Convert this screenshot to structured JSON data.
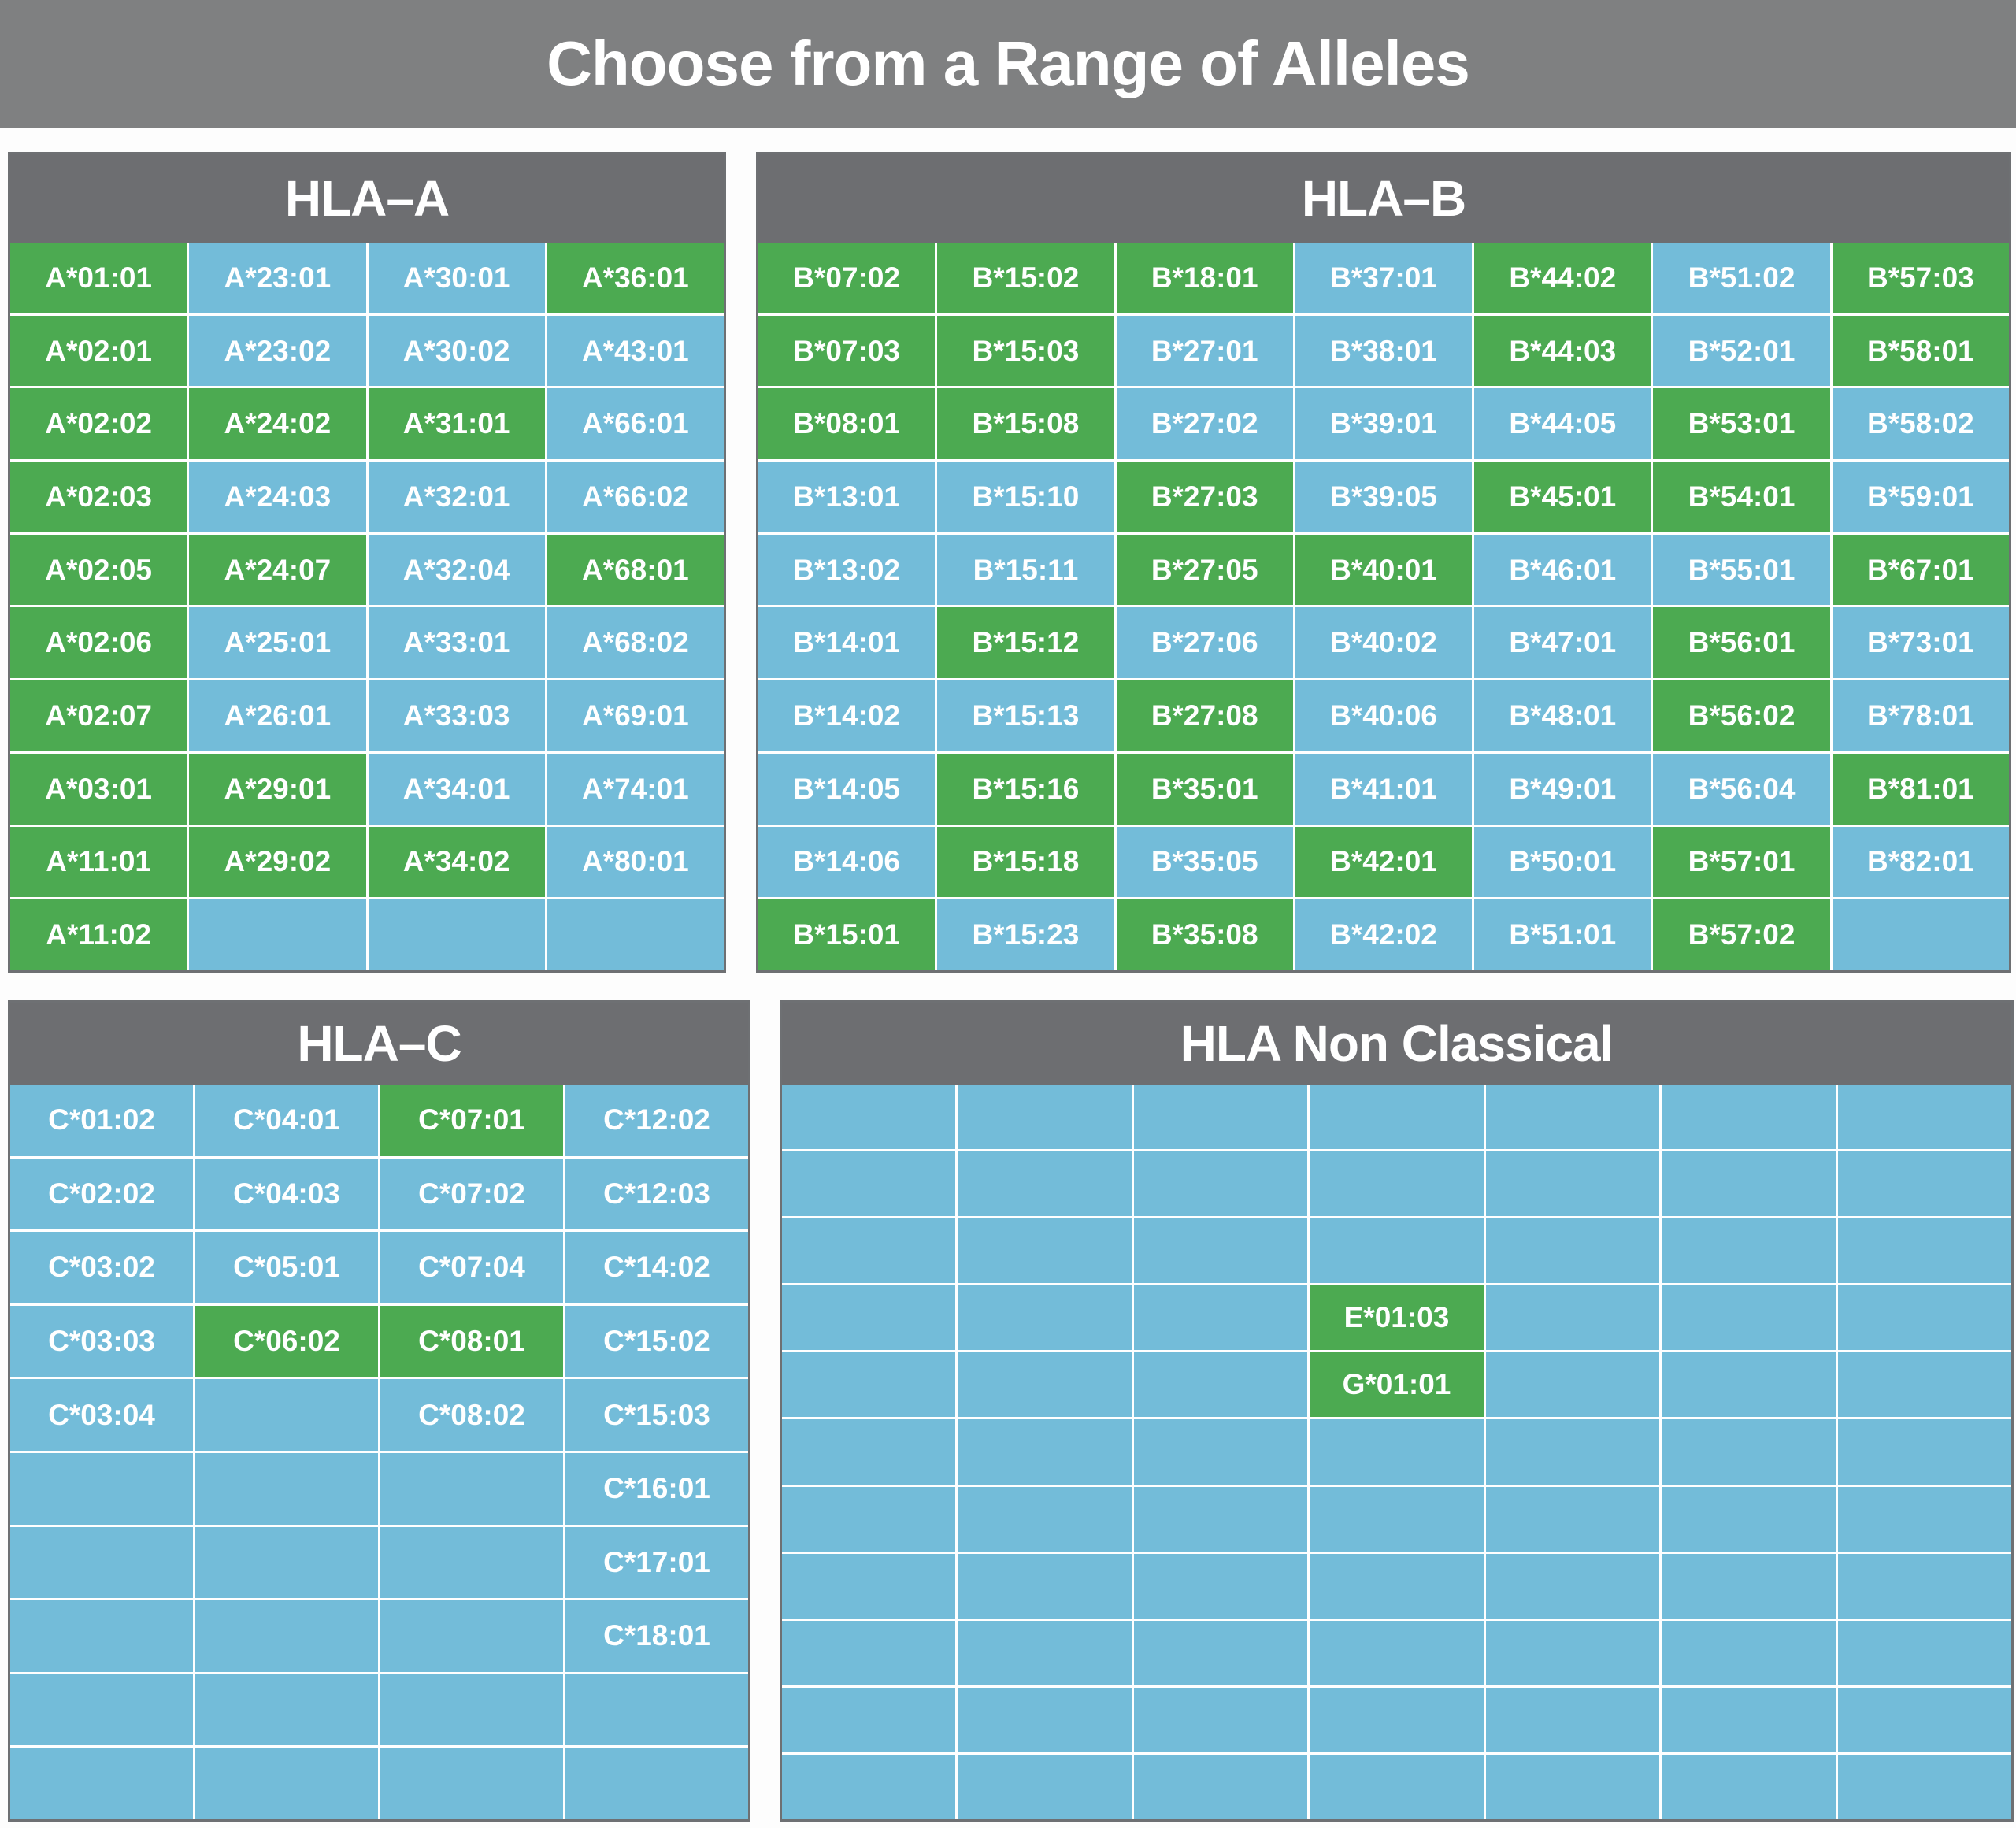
{
  "title": "Choose from a Range of Alleles",
  "colors": {
    "title_bar": "#7f8081",
    "panel_header": "#6d6e71",
    "green": "#4caa51",
    "blue": "#73bcd9",
    "cell_text": "#ffffff",
    "page_bg": "#fdfdfd",
    "panel_border": "#6e7073",
    "grid_line": "#ffffff"
  },
  "selected_color_meaning": "green",
  "unselected_color_meaning": "blue",
  "panels": [
    {
      "id": "hla-a",
      "title": "HLA–A",
      "columns": 4,
      "rows": 10,
      "cells": [
        {
          "label": "A*01:01",
          "selected": true
        },
        {
          "label": "A*23:01",
          "selected": false
        },
        {
          "label": "A*30:01",
          "selected": false
        },
        {
          "label": "A*36:01",
          "selected": true
        },
        {
          "label": "A*02:01",
          "selected": true
        },
        {
          "label": "A*23:02",
          "selected": false
        },
        {
          "label": "A*30:02",
          "selected": false
        },
        {
          "label": "A*43:01",
          "selected": false
        },
        {
          "label": "A*02:02",
          "selected": true
        },
        {
          "label": "A*24:02",
          "selected": true
        },
        {
          "label": "A*31:01",
          "selected": true
        },
        {
          "label": "A*66:01",
          "selected": false
        },
        {
          "label": "A*02:03",
          "selected": true
        },
        {
          "label": "A*24:03",
          "selected": false
        },
        {
          "label": "A*32:01",
          "selected": false
        },
        {
          "label": "A*66:02",
          "selected": false
        },
        {
          "label": "A*02:05",
          "selected": true
        },
        {
          "label": "A*24:07",
          "selected": true
        },
        {
          "label": "A*32:04",
          "selected": false
        },
        {
          "label": "A*68:01",
          "selected": true
        },
        {
          "label": "A*02:06",
          "selected": true
        },
        {
          "label": "A*25:01",
          "selected": false
        },
        {
          "label": "A*33:01",
          "selected": false
        },
        {
          "label": "A*68:02",
          "selected": false
        },
        {
          "label": "A*02:07",
          "selected": true
        },
        {
          "label": "A*26:01",
          "selected": false
        },
        {
          "label": "A*33:03",
          "selected": false
        },
        {
          "label": "A*69:01",
          "selected": false
        },
        {
          "label": "A*03:01",
          "selected": true
        },
        {
          "label": "A*29:01",
          "selected": true
        },
        {
          "label": "A*34:01",
          "selected": false
        },
        {
          "label": "A*74:01",
          "selected": false
        },
        {
          "label": "A*11:01",
          "selected": true
        },
        {
          "label": "A*29:02",
          "selected": true
        },
        {
          "label": "A*34:02",
          "selected": true
        },
        {
          "label": "A*80:01",
          "selected": false
        },
        {
          "label": "A*11:02",
          "selected": true
        },
        {},
        {},
        {}
      ]
    },
    {
      "id": "hla-b",
      "title": "HLA–B",
      "columns": 7,
      "rows": 10,
      "cells": [
        {
          "label": "B*07:02",
          "selected": true
        },
        {
          "label": "B*15:02",
          "selected": true
        },
        {
          "label": "B*18:01",
          "selected": true
        },
        {
          "label": "B*37:01",
          "selected": false
        },
        {
          "label": "B*44:02",
          "selected": true
        },
        {
          "label": "B*51:02",
          "selected": false
        },
        {
          "label": "B*57:03",
          "selected": true
        },
        {
          "label": "B*07:03",
          "selected": true
        },
        {
          "label": "B*15:03",
          "selected": true
        },
        {
          "label": "B*27:01",
          "selected": false
        },
        {
          "label": "B*38:01",
          "selected": false
        },
        {
          "label": "B*44:03",
          "selected": true
        },
        {
          "label": "B*52:01",
          "selected": false
        },
        {
          "label": "B*58:01",
          "selected": true
        },
        {
          "label": "B*08:01",
          "selected": true
        },
        {
          "label": "B*15:08",
          "selected": true
        },
        {
          "label": "B*27:02",
          "selected": false
        },
        {
          "label": "B*39:01",
          "selected": false
        },
        {
          "label": "B*44:05",
          "selected": false
        },
        {
          "label": "B*53:01",
          "selected": true
        },
        {
          "label": "B*58:02",
          "selected": false
        },
        {
          "label": "B*13:01",
          "selected": false
        },
        {
          "label": "B*15:10",
          "selected": false
        },
        {
          "label": "B*27:03",
          "selected": true
        },
        {
          "label": "B*39:05",
          "selected": false
        },
        {
          "label": "B*45:01",
          "selected": true
        },
        {
          "label": "B*54:01",
          "selected": true
        },
        {
          "label": "B*59:01",
          "selected": false
        },
        {
          "label": "B*13:02",
          "selected": false
        },
        {
          "label": "B*15:11",
          "selected": false
        },
        {
          "label": "B*27:05",
          "selected": true
        },
        {
          "label": "B*40:01",
          "selected": true
        },
        {
          "label": "B*46:01",
          "selected": false
        },
        {
          "label": "B*55:01",
          "selected": false
        },
        {
          "label": "B*67:01",
          "selected": true
        },
        {
          "label": "B*14:01",
          "selected": false
        },
        {
          "label": "B*15:12",
          "selected": true
        },
        {
          "label": "B*27:06",
          "selected": false
        },
        {
          "label": "B*40:02",
          "selected": false
        },
        {
          "label": "B*47:01",
          "selected": false
        },
        {
          "label": "B*56:01",
          "selected": true
        },
        {
          "label": "B*73:01",
          "selected": false
        },
        {
          "label": "B*14:02",
          "selected": false
        },
        {
          "label": "B*15:13",
          "selected": false
        },
        {
          "label": "B*27:08",
          "selected": true
        },
        {
          "label": "B*40:06",
          "selected": false
        },
        {
          "label": "B*48:01",
          "selected": false
        },
        {
          "label": "B*56:02",
          "selected": true
        },
        {
          "label": "B*78:01",
          "selected": false
        },
        {
          "label": "B*14:05",
          "selected": false
        },
        {
          "label": "B*15:16",
          "selected": true
        },
        {
          "label": "B*35:01",
          "selected": true
        },
        {
          "label": "B*41:01",
          "selected": false
        },
        {
          "label": "B*49:01",
          "selected": false
        },
        {
          "label": "B*56:04",
          "selected": false
        },
        {
          "label": "B*81:01",
          "selected": true
        },
        {
          "label": "B*14:06",
          "selected": false
        },
        {
          "label": "B*15:18",
          "selected": true
        },
        {
          "label": "B*35:05",
          "selected": false
        },
        {
          "label": "B*42:01",
          "selected": true
        },
        {
          "label": "B*50:01",
          "selected": false
        },
        {
          "label": "B*57:01",
          "selected": true
        },
        {
          "label": "B*82:01",
          "selected": false
        },
        {
          "label": "B*15:01",
          "selected": true
        },
        {
          "label": "B*15:23",
          "selected": false
        },
        {
          "label": "B*35:08",
          "selected": true
        },
        {
          "label": "B*42:02",
          "selected": false
        },
        {
          "label": "B*51:01",
          "selected": false
        },
        {
          "label": "B*57:02",
          "selected": true
        },
        {}
      ]
    },
    {
      "id": "hla-c",
      "title": "HLA–C",
      "columns": 4,
      "rows": 10,
      "cells": [
        {
          "label": "C*01:02",
          "selected": false
        },
        {
          "label": "C*04:01",
          "selected": false
        },
        {
          "label": "C*07:01",
          "selected": true
        },
        {
          "label": "C*12:02",
          "selected": false
        },
        {
          "label": "C*02:02",
          "selected": false
        },
        {
          "label": "C*04:03",
          "selected": false
        },
        {
          "label": "C*07:02",
          "selected": false
        },
        {
          "label": "C*12:03",
          "selected": false
        },
        {
          "label": "C*03:02",
          "selected": false
        },
        {
          "label": "C*05:01",
          "selected": false
        },
        {
          "label": "C*07:04",
          "selected": false
        },
        {
          "label": "C*14:02",
          "selected": false
        },
        {
          "label": "C*03:03",
          "selected": false
        },
        {
          "label": "C*06:02",
          "selected": true
        },
        {
          "label": "C*08:01",
          "selected": true
        },
        {
          "label": "C*15:02",
          "selected": false
        },
        {
          "label": "C*03:04",
          "selected": false
        },
        {},
        {
          "label": "C*08:02",
          "selected": false
        },
        {
          "label": "C*15:03",
          "selected": false
        },
        {},
        {},
        {},
        {
          "label": "C*16:01",
          "selected": false
        },
        {},
        {},
        {},
        {
          "label": "C*17:01",
          "selected": false
        },
        {},
        {},
        {},
        {
          "label": "C*18:01",
          "selected": false
        },
        {},
        {},
        {},
        {},
        {},
        {},
        {},
        {}
      ]
    },
    {
      "id": "hla-non-classical",
      "title": "HLA Non Classical",
      "columns": 7,
      "rows": 11,
      "cells": [
        {},
        {},
        {},
        {},
        {},
        {},
        {},
        {},
        {},
        {},
        {},
        {},
        {},
        {},
        {},
        {},
        {},
        {},
        {},
        {},
        {},
        {},
        {},
        {},
        {
          "label": "E*01:03",
          "selected": true
        },
        {},
        {},
        {},
        {},
        {},
        {},
        {
          "label": "G*01:01",
          "selected": true
        },
        {},
        {},
        {},
        {},
        {},
        {},
        {},
        {},
        {},
        {},
        {},
        {},
        {},
        {},
        {},
        {},
        {},
        {},
        {},
        {},
        {},
        {},
        {},
        {},
        {},
        {},
        {},
        {},
        {},
        {},
        {},
        {},
        {},
        {},
        {},
        {},
        {},
        {},
        {},
        {},
        {},
        {},
        {},
        {},
        {}
      ]
    }
  ]
}
